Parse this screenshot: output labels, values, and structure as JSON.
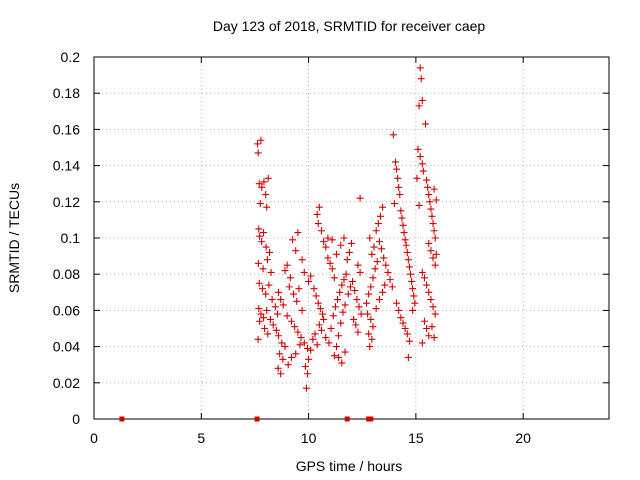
{
  "chart_data": {
    "type": "scatter",
    "title": "Day 123 of 2018, SRMTID for receiver caep",
    "xlabel": "GPS time / hours",
    "ylabel": "SRMTID / TECUs",
    "xlim": [
      0,
      24
    ],
    "ylim": [
      0,
      0.2
    ],
    "grid": true,
    "x_ticks": [
      0,
      5,
      10,
      15,
      20
    ],
    "y_ticks": [
      0,
      0.02,
      0.04,
      0.06,
      0.08,
      0.1,
      0.12,
      0.14,
      0.16,
      0.18,
      0.2
    ],
    "x_tick_labels": [
      "0",
      "5",
      "10",
      "15",
      "20"
    ],
    "y_tick_labels": [
      "0",
      "0.02",
      "0.04",
      "0.06",
      "0.08",
      "0.1",
      "0.12",
      "0.14",
      "0.16",
      "0.18",
      "0.2"
    ],
    "marker": "+",
    "color": "#d40000",
    "zero_markers_x": [
      1.3,
      7.6,
      11.8,
      12.8,
      12.9
    ],
    "series": [
      {
        "name": "SRMTID",
        "points": [
          [
            7.62,
            0.152
          ],
          [
            7.78,
            0.154
          ],
          [
            7.65,
            0.147
          ],
          [
            7.7,
            0.13
          ],
          [
            7.82,
            0.128
          ],
          [
            7.92,
            0.131
          ],
          [
            8.0,
            0.124
          ],
          [
            8.12,
            0.133
          ],
          [
            7.75,
            0.119
          ],
          [
            8.05,
            0.117
          ],
          [
            7.68,
            0.105
          ],
          [
            7.72,
            0.101
          ],
          [
            7.81,
            0.098
          ],
          [
            7.9,
            0.103
          ],
          [
            8.02,
            0.095
          ],
          [
            8.18,
            0.092
          ],
          [
            7.66,
            0.086
          ],
          [
            7.88,
            0.083
          ],
          [
            8.08,
            0.088
          ],
          [
            8.25,
            0.081
          ],
          [
            7.7,
            0.075
          ],
          [
            7.85,
            0.072
          ],
          [
            8.0,
            0.069
          ],
          [
            8.15,
            0.074
          ],
          [
            8.3,
            0.066
          ],
          [
            7.68,
            0.061
          ],
          [
            7.78,
            0.058
          ],
          [
            7.9,
            0.056
          ],
          [
            8.05,
            0.06
          ],
          [
            8.22,
            0.055
          ],
          [
            7.72,
            0.054
          ],
          [
            7.95,
            0.05
          ],
          [
            8.1,
            0.047
          ],
          [
            8.35,
            0.052
          ],
          [
            7.65,
            0.044
          ],
          [
            8.45,
            0.062
          ],
          [
            8.55,
            0.058
          ],
          [
            8.6,
            0.07
          ],
          [
            8.7,
            0.066
          ],
          [
            8.82,
            0.063
          ],
          [
            8.5,
            0.049
          ],
          [
            8.6,
            0.046
          ],
          [
            8.75,
            0.042
          ],
          [
            8.9,
            0.04
          ],
          [
            8.65,
            0.036
          ],
          [
            8.8,
            0.033
          ],
          [
            8.58,
            0.028
          ],
          [
            8.7,
            0.025
          ],
          [
            9.05,
            0.03
          ],
          [
            9.2,
            0.034
          ],
          [
            8.9,
            0.082
          ],
          [
            9.0,
            0.085
          ],
          [
            9.15,
            0.078
          ],
          [
            9.25,
            0.099
          ],
          [
            9.4,
            0.093
          ],
          [
            9.1,
            0.073
          ],
          [
            9.3,
            0.069
          ],
          [
            9.45,
            0.065
          ],
          [
            9.55,
            0.072
          ],
          [
            9.7,
            0.06
          ],
          [
            9.0,
            0.057
          ],
          [
            9.2,
            0.054
          ],
          [
            9.35,
            0.051
          ],
          [
            9.5,
            0.048
          ],
          [
            9.65,
            0.045
          ],
          [
            9.8,
            0.042
          ],
          [
            9.95,
            0.039
          ],
          [
            9.4,
            0.036
          ],
          [
            9.6,
            0.041
          ],
          [
            9.85,
            0.029
          ],
          [
            9.95,
            0.025
          ],
          [
            9.9,
            0.017
          ],
          [
            10.0,
            0.033
          ],
          [
            10.1,
            0.038
          ],
          [
            10.2,
            0.044
          ],
          [
            10.3,
            0.047
          ],
          [
            10.4,
            0.041
          ],
          [
            10.5,
            0.052
          ],
          [
            10.6,
            0.049
          ],
          [
            10.7,
            0.055
          ],
          [
            9.5,
            0.103
          ],
          [
            9.7,
            0.088
          ],
          [
            9.8,
            0.081
          ],
          [
            10.0,
            0.076
          ],
          [
            10.1,
            0.079
          ],
          [
            10.25,
            0.072
          ],
          [
            10.35,
            0.068
          ],
          [
            10.45,
            0.064
          ],
          [
            10.55,
            0.061
          ],
          [
            10.65,
            0.058
          ],
          [
            10.4,
            0.113
          ],
          [
            10.5,
            0.117
          ],
          [
            10.45,
            0.108
          ],
          [
            10.6,
            0.104
          ],
          [
            10.7,
            0.098
          ],
          [
            10.8,
            0.095
          ],
          [
            10.9,
            0.089
          ],
          [
            11.0,
            0.086
          ],
          [
            11.1,
            0.083
          ],
          [
            11.2,
            0.078
          ],
          [
            10.8,
            0.045
          ],
          [
            10.95,
            0.042
          ],
          [
            11.05,
            0.05
          ],
          [
            11.15,
            0.057
          ],
          [
            11.25,
            0.062
          ],
          [
            11.35,
            0.066
          ],
          [
            11.45,
            0.07
          ],
          [
            11.55,
            0.074
          ],
          [
            11.65,
            0.077
          ],
          [
            11.75,
            0.08
          ],
          [
            11.2,
            0.035
          ],
          [
            11.3,
            0.04
          ],
          [
            11.4,
            0.046
          ],
          [
            11.5,
            0.053
          ],
          [
            11.6,
            0.059
          ],
          [
            11.7,
            0.063
          ],
          [
            11.85,
            0.069
          ],
          [
            11.95,
            0.073
          ],
          [
            12.05,
            0.076
          ],
          [
            12.15,
            0.071
          ],
          [
            12.25,
            0.066
          ],
          [
            12.35,
            0.062
          ],
          [
            12.45,
            0.058
          ],
          [
            12.2,
            0.052
          ],
          [
            12.3,
            0.048
          ],
          [
            12.1,
            0.055
          ],
          [
            11.9,
            0.092
          ],
          [
            12.0,
            0.097
          ],
          [
            11.8,
            0.088
          ],
          [
            12.4,
            0.122
          ],
          [
            12.4,
            0.081
          ],
          [
            12.3,
            0.085
          ],
          [
            11.65,
            0.1
          ],
          [
            11.5,
            0.096
          ],
          [
            11.3,
            0.091
          ],
          [
            11.1,
            0.099
          ],
          [
            10.9,
            0.1
          ],
          [
            11.4,
            0.034
          ],
          [
            11.55,
            0.031
          ],
          [
            11.7,
            0.037
          ],
          [
            12.7,
            0.064
          ],
          [
            12.8,
            0.069
          ],
          [
            12.9,
            0.073
          ],
          [
            13.0,
            0.078
          ],
          [
            13.1,
            0.083
          ],
          [
            13.2,
            0.087
          ],
          [
            12.95,
            0.091
          ],
          [
            13.05,
            0.095
          ],
          [
            12.85,
            0.1
          ],
          [
            13.15,
            0.104
          ],
          [
            13.25,
            0.108
          ],
          [
            13.35,
            0.112
          ],
          [
            13.45,
            0.117
          ],
          [
            13.3,
            0.098
          ],
          [
            13.4,
            0.094
          ],
          [
            13.5,
            0.089
          ],
          [
            13.6,
            0.085
          ],
          [
            13.7,
            0.081
          ],
          [
            13.8,
            0.077
          ],
          [
            13.9,
            0.073
          ],
          [
            12.75,
            0.058
          ],
          [
            12.9,
            0.055
          ],
          [
            13.0,
            0.051
          ],
          [
            12.8,
            0.047
          ],
          [
            12.85,
            0.04
          ],
          [
            12.95,
            0.044
          ],
          [
            13.15,
            0.061
          ],
          [
            13.3,
            0.066
          ],
          [
            13.45,
            0.07
          ],
          [
            13.55,
            0.074
          ],
          [
            13.95,
            0.157
          ],
          [
            14.05,
            0.142
          ],
          [
            14.1,
            0.138
          ],
          [
            14.15,
            0.133
          ],
          [
            14.2,
            0.128
          ],
          [
            14.25,
            0.124
          ],
          [
            14.0,
            0.119
          ],
          [
            14.3,
            0.115
          ],
          [
            14.35,
            0.111
          ],
          [
            14.4,
            0.107
          ],
          [
            14.45,
            0.103
          ],
          [
            14.5,
            0.099
          ],
          [
            14.55,
            0.096
          ],
          [
            14.6,
            0.092
          ],
          [
            14.65,
            0.088
          ],
          [
            14.7,
            0.084
          ],
          [
            14.75,
            0.08
          ],
          [
            14.8,
            0.076
          ],
          [
            14.85,
            0.072
          ],
          [
            14.9,
            0.068
          ],
          [
            14.1,
            0.064
          ],
          [
            14.2,
            0.06
          ],
          [
            14.3,
            0.056
          ],
          [
            14.4,
            0.053
          ],
          [
            14.5,
            0.05
          ],
          [
            14.6,
            0.047
          ],
          [
            14.7,
            0.043
          ],
          [
            14.65,
            0.034
          ],
          [
            14.85,
            0.06
          ],
          [
            14.95,
            0.064
          ],
          [
            15.2,
            0.194
          ],
          [
            15.25,
            0.188
          ],
          [
            15.15,
            0.173
          ],
          [
            15.3,
            0.176
          ],
          [
            15.1,
            0.149
          ],
          [
            15.2,
            0.145
          ],
          [
            15.3,
            0.141
          ],
          [
            15.45,
            0.163
          ],
          [
            15.35,
            0.137
          ],
          [
            15.5,
            0.132
          ],
          [
            15.55,
            0.128
          ],
          [
            15.6,
            0.124
          ],
          [
            15.65,
            0.12
          ],
          [
            15.7,
            0.116
          ],
          [
            15.75,
            0.112
          ],
          [
            15.8,
            0.108
          ],
          [
            15.85,
            0.104
          ],
          [
            15.9,
            0.1
          ],
          [
            15.6,
            0.097
          ],
          [
            15.7,
            0.093
          ],
          [
            15.8,
            0.089
          ],
          [
            15.9,
            0.085
          ],
          [
            15.3,
            0.081
          ],
          [
            15.4,
            0.078
          ],
          [
            15.5,
            0.074
          ],
          [
            15.6,
            0.07
          ],
          [
            15.7,
            0.066
          ],
          [
            15.8,
            0.062
          ],
          [
            15.9,
            0.058
          ],
          [
            15.4,
            0.054
          ],
          [
            15.5,
            0.05
          ],
          [
            15.6,
            0.046
          ],
          [
            15.3,
            0.042
          ],
          [
            15.85,
            0.045
          ],
          [
            15.75,
            0.051
          ],
          [
            15.95,
            0.091
          ],
          [
            15.95,
            0.121
          ],
          [
            15.85,
            0.127
          ],
          [
            15.05,
            0.133
          ],
          [
            15.15,
            0.118
          ]
        ]
      }
    ]
  }
}
